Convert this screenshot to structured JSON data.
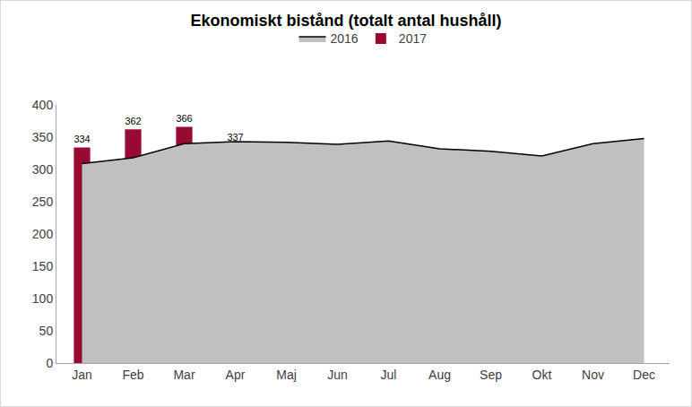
{
  "chart_data": {
    "type": "bar",
    "title": "Ekonomiskt bistånd (totalt antal hushåll)",
    "categories": [
      "Jan",
      "Feb",
      "Mar",
      "Apr",
      "Maj",
      "Jun",
      "Jul",
      "Aug",
      "Sep",
      "Okt",
      "Nov",
      "Dec"
    ],
    "series": [
      {
        "name": "2016",
        "type": "area",
        "color": "#c0c0c0",
        "values": [
          309,
          318,
          340,
          343,
          342,
          339,
          344,
          332,
          328,
          321,
          340,
          348
        ]
      },
      {
        "name": "2017",
        "type": "bar",
        "color": "#990a33",
        "data_labels": true,
        "values": [
          334,
          362,
          366,
          337,
          null,
          null,
          null,
          null,
          null,
          null,
          null,
          null
        ]
      }
    ],
    "ylim": [
      0,
      400
    ],
    "yticks": [
      0,
      50,
      100,
      150,
      200,
      250,
      300,
      350,
      400
    ],
    "grid": false,
    "legend": "top"
  }
}
